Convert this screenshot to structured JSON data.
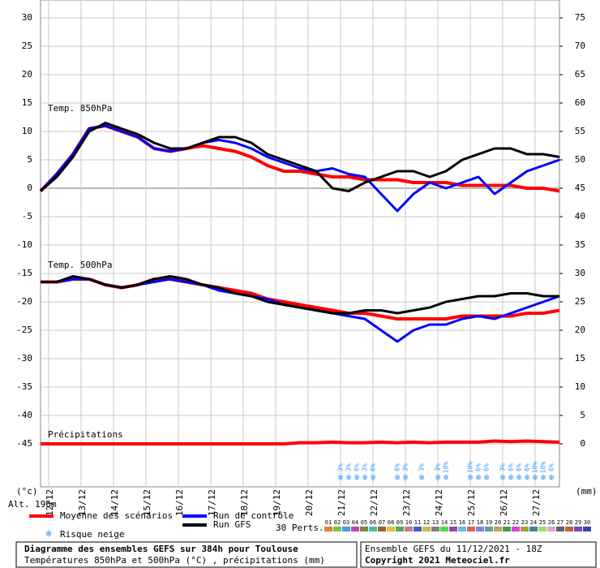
{
  "chart_data": {
    "type": "line",
    "title": "Diagramme des ensembles GEFS sur 384h pour Toulouse",
    "subtitle": "Températures 850hPa et 500hPa (°C) , précipitations (mm)",
    "run_info": "Ensemble GEFS du 11/12/2021 - 18Z",
    "copyright": "Copyright 2021 Meteociel.fr",
    "y_label": "(°c)",
    "y2_label": "(mm)",
    "altitude": "Alt. 196m",
    "panels": [
      "Temp. 850hPa",
      "Temp. 500hPa",
      "Précipitations"
    ],
    "xlim": [
      0,
      384
    ],
    "xticks": [
      {
        "value": 6,
        "label": "12/12"
      },
      {
        "value": 30,
        "label": "13/12"
      },
      {
        "value": 54,
        "label": "14/12"
      },
      {
        "value": 78,
        "label": "15/12"
      },
      {
        "value": 102,
        "label": "16/12"
      },
      {
        "value": 126,
        "label": "17/12"
      },
      {
        "value": 150,
        "label": "18/12"
      },
      {
        "value": 174,
        "label": "19/12"
      },
      {
        "value": 198,
        "label": "20/12"
      },
      {
        "value": 222,
        "label": "21/12"
      },
      {
        "value": 246,
        "label": "22/12"
      },
      {
        "value": 270,
        "label": "23/12"
      },
      {
        "value": 294,
        "label": "24/12"
      },
      {
        "value": 318,
        "label": "25/12"
      },
      {
        "value": 342,
        "label": "26/12"
      },
      {
        "value": 366,
        "label": "27/12"
      }
    ],
    "ylim": [
      -45,
      30
    ],
    "yticks": [
      30,
      25,
      20,
      15,
      10,
      5,
      0,
      -5,
      -10,
      -15,
      -20,
      -25,
      -30,
      -35,
      -40,
      -45
    ],
    "y2lim": [
      0,
      75
    ],
    "y2ticks": [
      75,
      70,
      65,
      60,
      55,
      50,
      45,
      40,
      35,
      30,
      25,
      20,
      15,
      10,
      5,
      0
    ],
    "grid": true,
    "x": [
      0,
      12,
      24,
      36,
      48,
      60,
      72,
      84,
      96,
      108,
      120,
      132,
      144,
      156,
      168,
      180,
      192,
      204,
      216,
      228,
      240,
      252,
      264,
      276,
      288,
      300,
      312,
      324,
      336,
      348,
      360,
      372,
      384
    ],
    "series": [
      {
        "name": "Moyenne des scénarios",
        "color": "#ff0000",
        "width": 4,
        "values": [
          -0.5,
          2.5,
          6,
          10.5,
          11,
          10,
          9,
          7,
          6.5,
          7,
          7.5,
          7,
          6.5,
          5.5,
          4,
          3,
          3,
          2.5,
          2,
          2,
          1.5,
          1.5,
          1.5,
          1,
          1,
          1,
          0.5,
          0.5,
          0.5,
          0.5,
          0,
          0,
          -0.5
        ]
      },
      {
        "name": "Run de contrôle",
        "color": "#0000ff",
        "width": 3,
        "values": [
          -0.5,
          2.5,
          6,
          10.5,
          11,
          10,
          9,
          7,
          6.5,
          7,
          8,
          8.5,
          8,
          7,
          5.5,
          4.5,
          3.5,
          3,
          3.5,
          2.5,
          2,
          -1,
          -4,
          -1,
          1,
          0,
          1,
          2,
          -1,
          1,
          3,
          4,
          5
        ]
      },
      {
        "name": "Run GFS",
        "color": "#000000",
        "width": 3,
        "values": [
          -0.5,
          2,
          5.5,
          10,
          11.5,
          10.5,
          9.5,
          8,
          7,
          7,
          8,
          9,
          9,
          8,
          6,
          5,
          4,
          3,
          0,
          -0.5,
          1,
          2,
          3,
          3,
          2,
          3,
          5,
          6,
          7,
          7,
          6,
          6,
          5.5
        ]
      },
      {
        "name": "Moyenne des scénarios",
        "color": "#ff0000",
        "width": 4,
        "values": [
          -16.5,
          -16.5,
          -16,
          -16,
          -17,
          -17.5,
          -17,
          -16,
          -16,
          -16.5,
          -17,
          -17.5,
          -18,
          -18.5,
          -19.5,
          -20,
          -20.5,
          -21,
          -21.5,
          -22,
          -22,
          -22.5,
          -23,
          -23,
          -23,
          -23,
          -22.5,
          -22.5,
          -22.5,
          -22.5,
          -22,
          -22,
          -21.5
        ]
      },
      {
        "name": "Run de contrôle",
        "color": "#0000ff",
        "width": 3,
        "values": [
          -16.5,
          -16.5,
          -16,
          -16,
          -17,
          -17.5,
          -17,
          -16.5,
          -16,
          -16.5,
          -17,
          -18,
          -18.5,
          -19,
          -19.5,
          -20.5,
          -21,
          -21.5,
          -22,
          -22.5,
          -23,
          -25,
          -27,
          -25,
          -24,
          -24,
          -23,
          -22.5,
          -23,
          -22,
          -21,
          -20,
          -19
        ]
      },
      {
        "name": "Run GFS",
        "color": "#000000",
        "width": 3,
        "values": [
          -16.5,
          -16.5,
          -15.5,
          -16,
          -17,
          -17.5,
          -17,
          -16,
          -15.5,
          -16,
          -17,
          -17.5,
          -18.5,
          -19,
          -20,
          -20.5,
          -21,
          -21.5,
          -22,
          -22,
          -21.5,
          -21.5,
          -22,
          -21.5,
          -21,
          -20,
          -19.5,
          -19,
          -19,
          -18.5,
          -18.5,
          -19,
          -19
        ]
      },
      {
        "name": "Moyenne des scénarios",
        "color": "#ff0000",
        "width": 4,
        "axis": "y2",
        "values": [
          0,
          0,
          0,
          0,
          0,
          0,
          0,
          0,
          0,
          0,
          0,
          0,
          0,
          0,
          0,
          0,
          0.2,
          0.2,
          0.3,
          0.2,
          0.2,
          0.3,
          0.2,
          0.3,
          0.2,
          0.3,
          0.3,
          0.3,
          0.5,
          0.4,
          0.5,
          0.4,
          0.3
        ]
      }
    ],
    "snow_label": "Risque neige",
    "snow_color": "#3399ff",
    "snow_risk": {
      "x": [
        222,
        228,
        234,
        240,
        246,
        264,
        270,
        282,
        294,
        300,
        318,
        324,
        330,
        342,
        348,
        354,
        360,
        366,
        372,
        378
      ],
      "values": [
        3,
        3,
        6,
        3,
        6,
        6,
        3,
        3,
        3,
        10,
        10,
        6,
        6,
        3,
        6,
        6,
        6,
        10,
        10,
        6
      ],
      "value_labels": [
        "3%",
        "3%",
        "6%",
        "3%",
        "6%",
        "6%",
        "3%",
        "3%",
        "3%",
        "10%",
        "10%",
        "6%",
        "6%",
        "3%",
        "6%",
        "6%",
        "6%",
        "10%",
        "10%",
        "6%"
      ]
    },
    "perts_label": "30 Perts.",
    "perts": [
      "01",
      "02",
      "03",
      "04",
      "05",
      "06",
      "07",
      "08",
      "09",
      "10",
      "11",
      "12",
      "13",
      "14",
      "15",
      "16",
      "17",
      "18",
      "19",
      "20",
      "21",
      "22",
      "23",
      "24",
      "25",
      "26",
      "27",
      "28",
      "29",
      "30"
    ],
    "pert_colors": [
      "#e08040",
      "#80c040",
      "#40a0e0",
      "#c040c0",
      "#808040",
      "#40c0a0",
      "#a06030",
      "#e0c040",
      "#60a060",
      "#c08080",
      "#4060c0",
      "#c0c040",
      "#808080",
      "#40e040",
      "#a040a0",
      "#60c0e0",
      "#e06060",
      "#8080e0",
      "#60a0a0",
      "#c0a060",
      "#40a040",
      "#e040e0",
      "#a0a040",
      "#4080a0",
      "#a0e060",
      "#e0a0e0",
      "#606060",
      "#c06040",
      "#8040c0",
      "#4040a0"
    ]
  }
}
